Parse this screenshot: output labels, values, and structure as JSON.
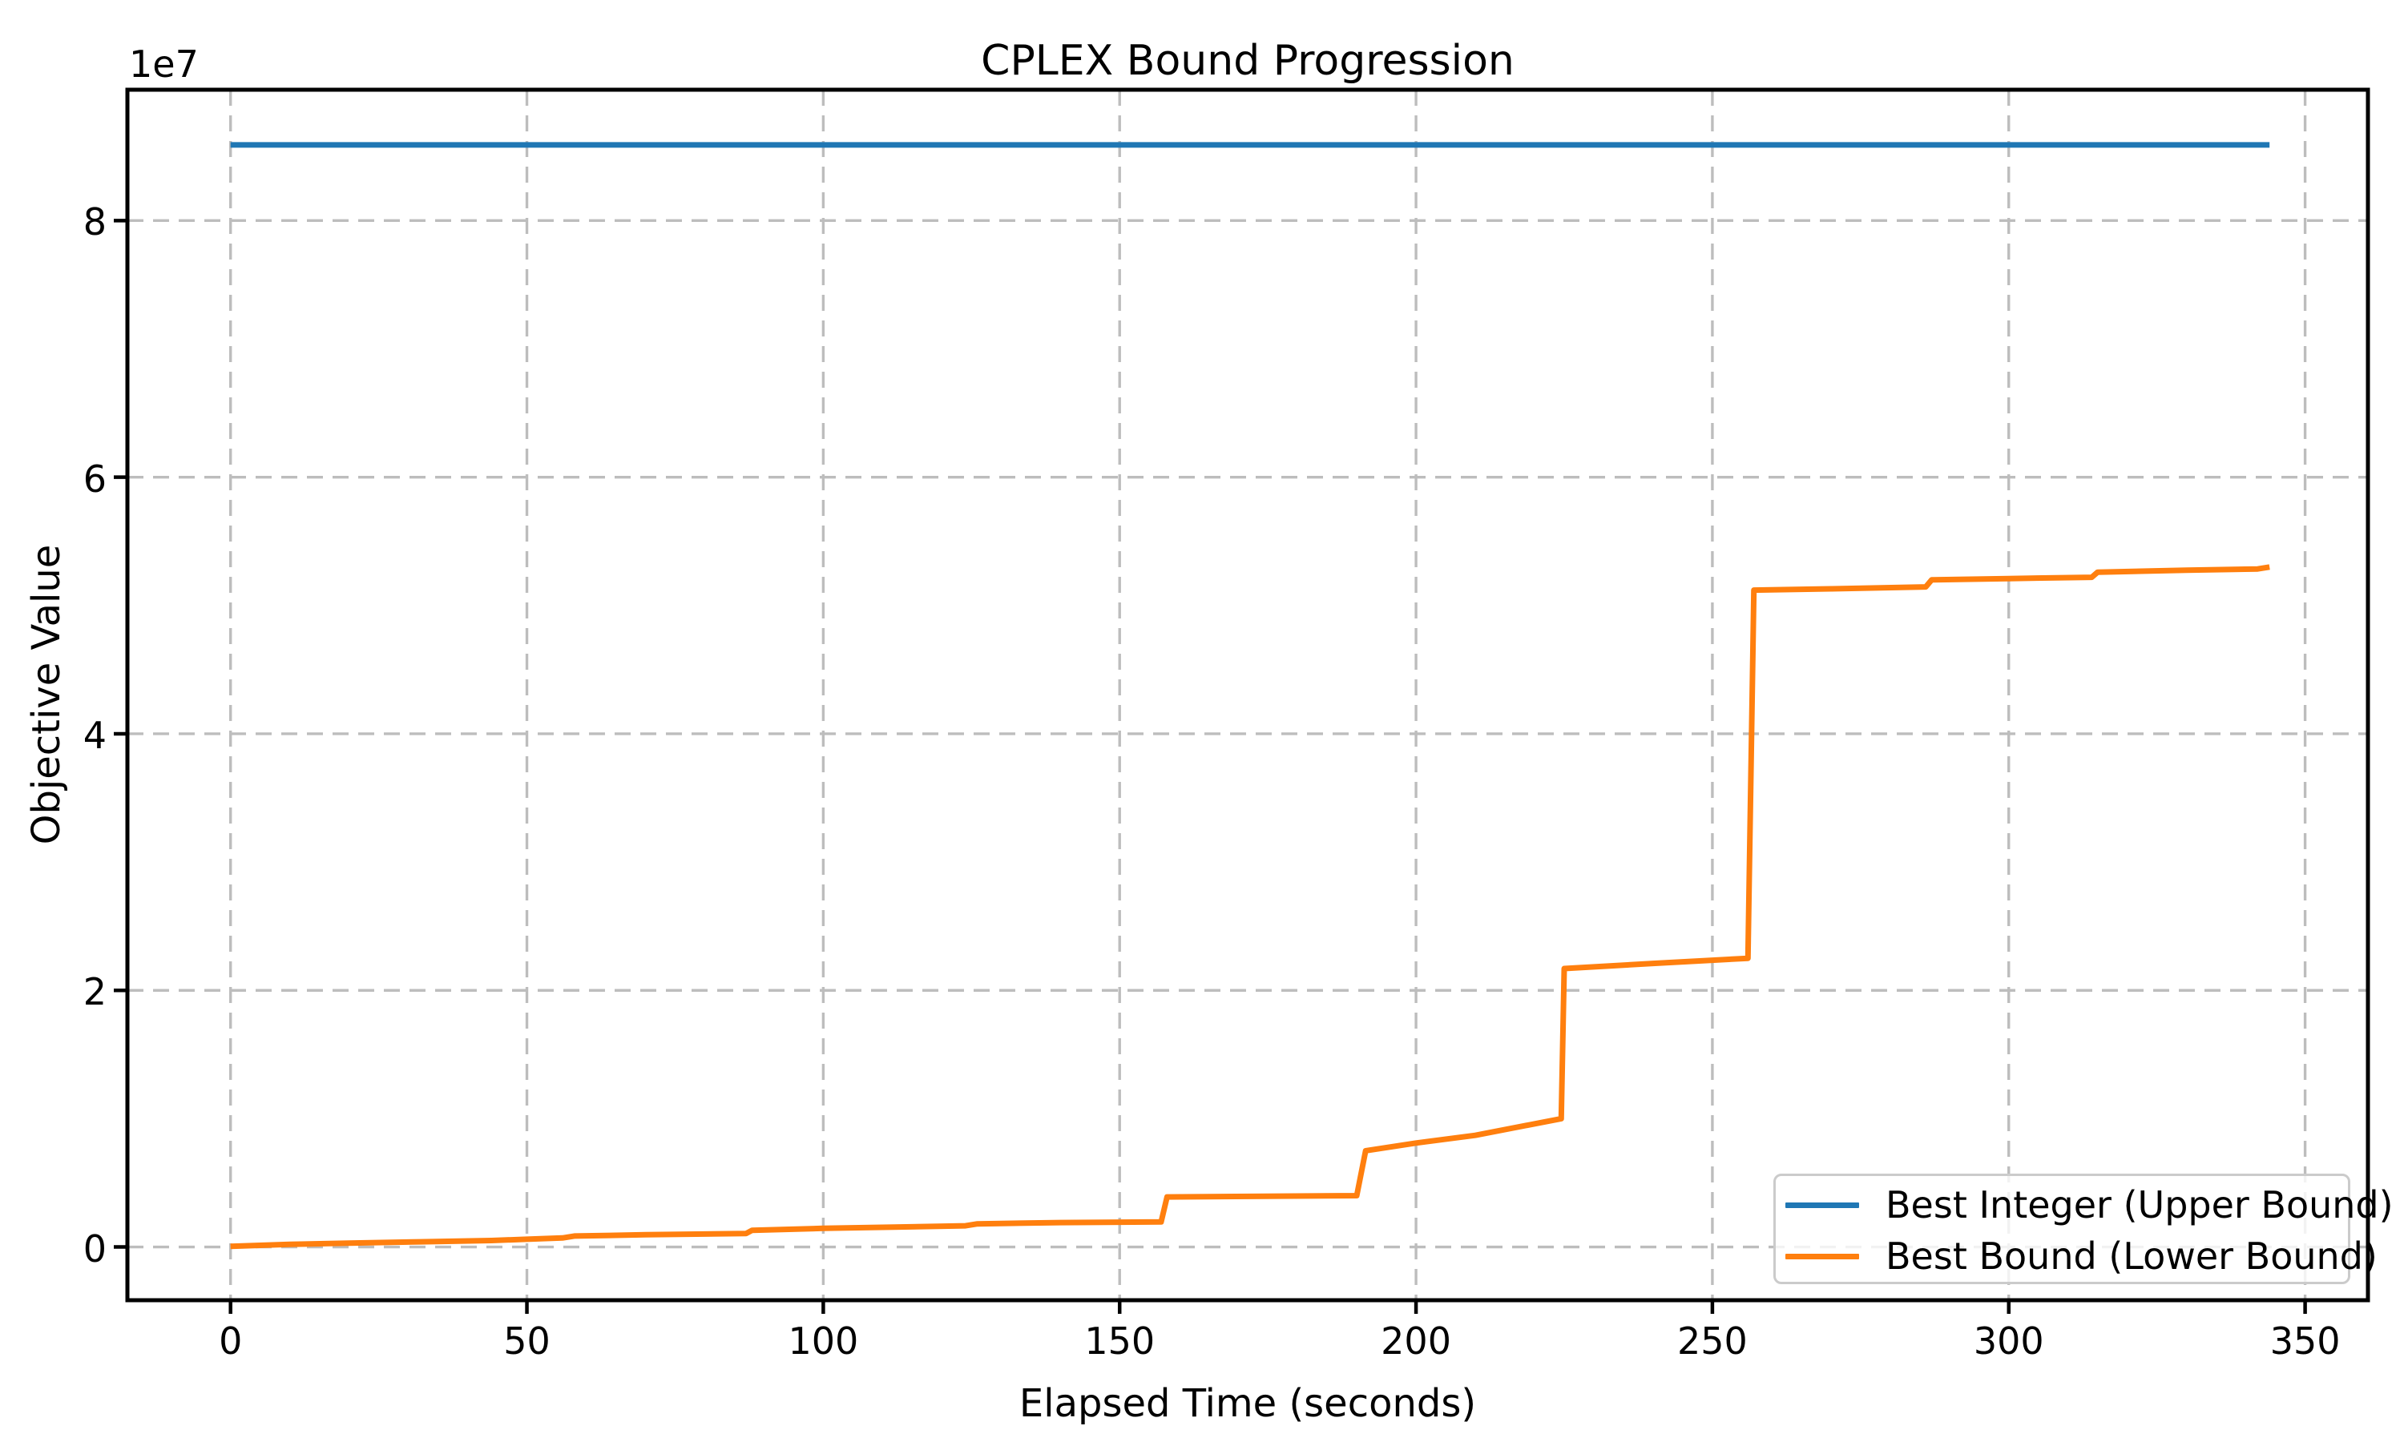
{
  "title": "CPLEX Bound Progression",
  "axes": {
    "xlabel": "Elapsed Time (seconds)",
    "ylabel": "Objective Value",
    "offset_label": "1e7"
  },
  "legend": {
    "position": "lower right",
    "entries": [
      {
        "label": "Best Integer (Upper Bound)",
        "color": "#1f77b4"
      },
      {
        "label": "Best Bound (Lower Bound)",
        "color": "#ff7f0e"
      }
    ]
  },
  "colors": {
    "upper_bound_line": "#1f77b4",
    "lower_bound_line": "#ff7f0e",
    "grid": "#bdbdbd",
    "spine": "#000000",
    "text": "#000000",
    "legend_border": "#cbcbcb"
  },
  "chart_data": {
    "type": "line",
    "title": "CPLEX Bound Progression",
    "xlabel": "Elapsed Time (seconds)",
    "ylabel": "Objective Value",
    "grid": true,
    "grid_style": "dashed",
    "legend_position": "lower right",
    "xlim": [
      -17.4,
      360.6
    ],
    "ylim": [
      -4150000,
      90200000
    ],
    "x_ticks": {
      "values": [
        0,
        50,
        100,
        150,
        200,
        250,
        300,
        350
      ],
      "labels": [
        "0",
        "50",
        "100",
        "150",
        "200",
        "250",
        "300",
        "350"
      ]
    },
    "y_ticks": {
      "values": [
        0,
        20000000,
        40000000,
        60000000,
        80000000
      ],
      "labels": [
        "0",
        "2",
        "4",
        "6",
        "8"
      ],
      "offset_text": "1e7"
    },
    "series": [
      {
        "name": "Best Integer (Upper Bound)",
        "color": "#1f77b4",
        "x": [
          0,
          344
        ],
        "y": [
          85900000,
          85900000
        ]
      },
      {
        "name": "Best Bound (Lower Bound)",
        "color": "#ff7f0e",
        "x": [
          0,
          10,
          20,
          32,
          44,
          50,
          56,
          58,
          70,
          87,
          88,
          100,
          112,
          124,
          126,
          140,
          157,
          158,
          190,
          191.5,
          200,
          210,
          224.5,
          225,
          240,
          256,
          257,
          270,
          286,
          287,
          300,
          314,
          315,
          330,
          342,
          344
        ],
        "y": [
          50000,
          200000,
          300000,
          400000,
          500000,
          600000,
          700000,
          850000,
          950000,
          1050000,
          1300000,
          1450000,
          1550000,
          1650000,
          1800000,
          1900000,
          1950000,
          3900000,
          4000000,
          7500000,
          8100000,
          8700000,
          10000000,
          21700000,
          22100000,
          22500000,
          51200000,
          51300000,
          51450000,
          52000000,
          52100000,
          52200000,
          52600000,
          52750000,
          52850000,
          53000000
        ]
      }
    ]
  }
}
